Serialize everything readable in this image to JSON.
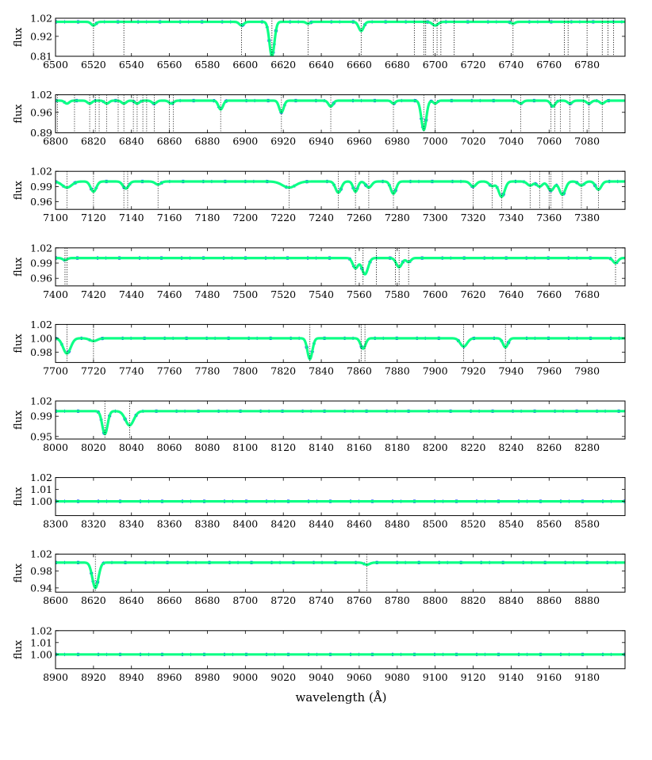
{
  "figure": {
    "xlabel": "wavelength (Å)",
    "ylabel": "flux",
    "colors": {
      "model": "#00ff7f",
      "observed": "#1f3fff",
      "line_marker": "#000000",
      "axes": "#000000"
    }
  },
  "chart_data": [
    {
      "type": "line",
      "ylabel": "flux",
      "xlim": [
        6500,
        6800
      ],
      "ylim": [
        0.81,
        1.02
      ],
      "xticks": [
        6500,
        6520,
        6540,
        6560,
        6580,
        6600,
        6620,
        6640,
        6660,
        6680,
        6700,
        6720,
        6740,
        6760,
        6780
      ],
      "yticks": [
        0.81,
        0.92,
        1.02
      ],
      "ytick_labels": [
        "0.81",
        "0.92",
        "1.02"
      ],
      "continuum": 1.0,
      "absorption_lines": [
        {
          "x": 6520,
          "depth": 0.02,
          "width": 1.2
        },
        {
          "x": 6598,
          "depth": 0.02,
          "width": 1.2
        },
        {
          "x": 6614,
          "depth": 0.19,
          "width": 1.3
        },
        {
          "x": 6633,
          "depth": 0.01,
          "width": 1.0
        },
        {
          "x": 6661,
          "depth": 0.05,
          "width": 1.3
        },
        {
          "x": 6700,
          "depth": 0.02,
          "width": 1.5
        },
        {
          "x": 6741,
          "depth": 0.01,
          "width": 1.0
        }
      ],
      "line_markers": [
        6520,
        6536,
        6598,
        6614,
        6633,
        6661,
        6689,
        6694,
        6695,
        6699,
        6701,
        6703,
        6710,
        6741,
        6768,
        6770,
        6780,
        6788,
        6791,
        6794
      ]
    },
    {
      "type": "line",
      "ylabel": "flux",
      "xlim": [
        6800,
        7100
      ],
      "ylim": [
        0.89,
        1.02
      ],
      "xticks": [
        6800,
        6820,
        6840,
        6860,
        6880,
        6900,
        6920,
        6940,
        6960,
        6980,
        7000,
        7020,
        7040,
        7060,
        7080
      ],
      "yticks": [
        0.89,
        0.96,
        1.02
      ],
      "ytick_labels": [
        "0.89",
        "0.96",
        "1.02"
      ],
      "continuum": 1.0,
      "absorption_lines": [
        {
          "x": 6806,
          "depth": 0.01,
          "width": 1.2
        },
        {
          "x": 6818,
          "depth": 0.01,
          "width": 1.2
        },
        {
          "x": 6827,
          "depth": 0.01,
          "width": 1.2
        },
        {
          "x": 6836,
          "depth": 0.01,
          "width": 1.2
        },
        {
          "x": 6843,
          "depth": 0.01,
          "width": 1.2
        },
        {
          "x": 6852,
          "depth": 0.01,
          "width": 1.2
        },
        {
          "x": 6861,
          "depth": 0.01,
          "width": 1.2
        },
        {
          "x": 6887,
          "depth": 0.03,
          "width": 1.2
        },
        {
          "x": 6919,
          "depth": 0.04,
          "width": 1.2
        },
        {
          "x": 6945,
          "depth": 0.02,
          "width": 1.2
        },
        {
          "x": 6978,
          "depth": 0.01,
          "width": 1.0
        },
        {
          "x": 6994,
          "depth": 0.1,
          "width": 1.3
        },
        {
          "x": 7000,
          "depth": 0.01,
          "width": 1.0
        },
        {
          "x": 7045,
          "depth": 0.01,
          "width": 1.2
        },
        {
          "x": 7062,
          "depth": 0.02,
          "width": 1.2
        },
        {
          "x": 7071,
          "depth": 0.01,
          "width": 1.2
        },
        {
          "x": 7081,
          "depth": 0.01,
          "width": 1.2
        },
        {
          "x": 7088,
          "depth": 0.01,
          "width": 1.2
        }
      ],
      "line_markers": [
        6801,
        6810,
        6818,
        6821,
        6823,
        6827,
        6833,
        6836,
        6841,
        6843,
        6846,
        6848,
        6852,
        6860,
        6862,
        6887,
        6919,
        6945,
        6978,
        6994,
        7000,
        7045,
        7061,
        7063,
        7066,
        7071,
        7078,
        7081,
        7088
      ]
    },
    {
      "type": "line",
      "ylabel": "flux",
      "xlim": [
        7100,
        7400
      ],
      "ylim": [
        0.945,
        1.02
      ],
      "xticks": [
        7100,
        7120,
        7140,
        7160,
        7180,
        7200,
        7220,
        7240,
        7260,
        7280,
        7300,
        7320,
        7340,
        7360,
        7380
      ],
      "yticks": [
        0.96,
        0.99,
        1.02
      ],
      "ytick_labels": [
        "0.96",
        "0.99",
        "1.02"
      ],
      "continuum": 1.0,
      "absorption_lines": [
        {
          "x": 7106,
          "depth": 0.012,
          "width": 2.5
        },
        {
          "x": 7120,
          "depth": 0.02,
          "width": 1.5
        },
        {
          "x": 7137,
          "depth": 0.014,
          "width": 1.5
        },
        {
          "x": 7154,
          "depth": 0.006,
          "width": 1.5
        },
        {
          "x": 7223,
          "depth": 0.012,
          "width": 3.5
        },
        {
          "x": 7249,
          "depth": 0.022,
          "width": 1.5
        },
        {
          "x": 7258,
          "depth": 0.02,
          "width": 1.2
        },
        {
          "x": 7265,
          "depth": 0.012,
          "width": 1.5
        },
        {
          "x": 7278,
          "depth": 0.024,
          "width": 1.4
        },
        {
          "x": 7320,
          "depth": 0.01,
          "width": 1.5
        },
        {
          "x": 7330,
          "depth": 0.009,
          "width": 1.5
        },
        {
          "x": 7335,
          "depth": 0.03,
          "width": 1.6
        },
        {
          "x": 7350,
          "depth": 0.008,
          "width": 1.5
        },
        {
          "x": 7355,
          "depth": 0.01,
          "width": 1.5
        },
        {
          "x": 7361,
          "depth": 0.018,
          "width": 1.6
        },
        {
          "x": 7367,
          "depth": 0.026,
          "width": 1.6
        },
        {
          "x": 7377,
          "depth": 0.008,
          "width": 1.5
        },
        {
          "x": 7386,
          "depth": 0.016,
          "width": 1.5
        }
      ],
      "line_markers": [
        7106,
        7120,
        7136,
        7138,
        7154,
        7223,
        7249,
        7258,
        7265,
        7278,
        7320,
        7330,
        7335,
        7350,
        7355,
        7360,
        7361,
        7367,
        7377,
        7386
      ]
    },
    {
      "type": "line",
      "ylabel": "flux",
      "xlim": [
        7400,
        7700
      ],
      "ylim": [
        0.945,
        1.02
      ],
      "xticks": [
        7400,
        7420,
        7440,
        7460,
        7480,
        7500,
        7520,
        7540,
        7560,
        7580,
        7600,
        7620,
        7640,
        7660,
        7680
      ],
      "yticks": [
        0.96,
        0.99,
        1.02
      ],
      "ytick_labels": [
        "0.96",
        "0.99",
        "1.02"
      ],
      "continuum": 1.0,
      "absorption_lines": [
        {
          "x": 7405,
          "depth": 0.004,
          "width": 1.2
        },
        {
          "x": 7558,
          "depth": 0.02,
          "width": 1.4
        },
        {
          "x": 7563,
          "depth": 0.032,
          "width": 1.6
        },
        {
          "x": 7581,
          "depth": 0.018,
          "width": 1.5
        },
        {
          "x": 7586,
          "depth": 0.008,
          "width": 1.2
        },
        {
          "x": 7695,
          "depth": 0.01,
          "width": 1.3
        }
      ],
      "line_markers": [
        7405,
        7406,
        7558,
        7562,
        7569,
        7579,
        7581,
        7586,
        7695
      ]
    },
    {
      "type": "line",
      "ylabel": "flux",
      "xlim": [
        7700,
        8000
      ],
      "ylim": [
        0.965,
        1.02
      ],
      "xticks": [
        7700,
        7720,
        7740,
        7760,
        7780,
        7800,
        7820,
        7840,
        7860,
        7880,
        7900,
        7920,
        7940,
        7960,
        7980
      ],
      "yticks": [
        0.98,
        1.0,
        1.02
      ],
      "ytick_labels": [
        "0.98",
        "1.00",
        "1.02"
      ],
      "continuum": 1.0,
      "absorption_lines": [
        {
          "x": 7706,
          "depth": 0.022,
          "width": 2.0
        },
        {
          "x": 7720,
          "depth": 0.004,
          "width": 2.0
        },
        {
          "x": 7834,
          "depth": 0.03,
          "width": 1.3
        },
        {
          "x": 7862,
          "depth": 0.015,
          "width": 1.3
        },
        {
          "x": 7915,
          "depth": 0.012,
          "width": 1.8
        },
        {
          "x": 7937,
          "depth": 0.013,
          "width": 1.3
        }
      ],
      "line_markers": [
        7706,
        7720,
        7834,
        7861,
        7863,
        7915,
        7937
      ]
    },
    {
      "type": "line",
      "ylabel": "flux",
      "xlim": [
        8000,
        8300
      ],
      "ylim": [
        0.945,
        1.02
      ],
      "xticks": [
        8000,
        8020,
        8040,
        8060,
        8080,
        8100,
        8120,
        8140,
        8160,
        8180,
        8200,
        8220,
        8240,
        8260,
        8280
      ],
      "yticks": [
        0.95,
        0.99,
        1.02
      ],
      "ytick_labels": [
        "0.95",
        "0.99",
        "1.02"
      ],
      "continuum": 1.0,
      "absorption_lines": [
        {
          "x": 8026,
          "depth": 0.045,
          "width": 1.4
        },
        {
          "x": 8039,
          "depth": 0.028,
          "width": 2.2
        }
      ],
      "line_markers": [
        8026,
        8039
      ]
    },
    {
      "type": "line",
      "ylabel": "flux",
      "xlim": [
        8300,
        8600
      ],
      "ylim": [
        0.988,
        1.02
      ],
      "xticks": [
        8300,
        8320,
        8340,
        8360,
        8380,
        8400,
        8420,
        8440,
        8460,
        8480,
        8500,
        8520,
        8540,
        8560,
        8580
      ],
      "yticks": [
        1.0,
        1.01,
        1.02
      ],
      "ytick_labels": [
        "1.00",
        "1.01",
        "1.02"
      ],
      "continuum": 1.0,
      "absorption_lines": [],
      "line_markers": []
    },
    {
      "type": "line",
      "ylabel": "flux",
      "xlim": [
        8600,
        8900
      ],
      "ylim": [
        0.93,
        1.02
      ],
      "xticks": [
        8600,
        8620,
        8640,
        8660,
        8680,
        8700,
        8720,
        8740,
        8760,
        8780,
        8800,
        8820,
        8840,
        8860,
        8880
      ],
      "yticks": [
        0.94,
        0.98,
        1.02
      ],
      "ytick_labels": [
        "0.94",
        "0.98",
        "1.02"
      ],
      "continuum": 1.0,
      "absorption_lines": [
        {
          "x": 8621,
          "depth": 0.06,
          "width": 1.6
        },
        {
          "x": 8764,
          "depth": 0.005,
          "width": 1.5
        }
      ],
      "line_markers": [
        8621,
        8764
      ]
    },
    {
      "type": "line",
      "ylabel": "flux",
      "xlim": [
        8900,
        9200
      ],
      "ylim": [
        0.988,
        1.02
      ],
      "xticks": [
        8900,
        8920,
        8940,
        8960,
        8980,
        9000,
        9020,
        9040,
        9060,
        9080,
        9100,
        9120,
        9140,
        9160,
        9180
      ],
      "yticks": [
        1.0,
        1.01,
        1.02
      ],
      "ytick_labels": [
        "1.00",
        "1.01",
        "1.02"
      ],
      "continuum": 1.0,
      "absorption_lines": [],
      "line_markers": []
    }
  ]
}
